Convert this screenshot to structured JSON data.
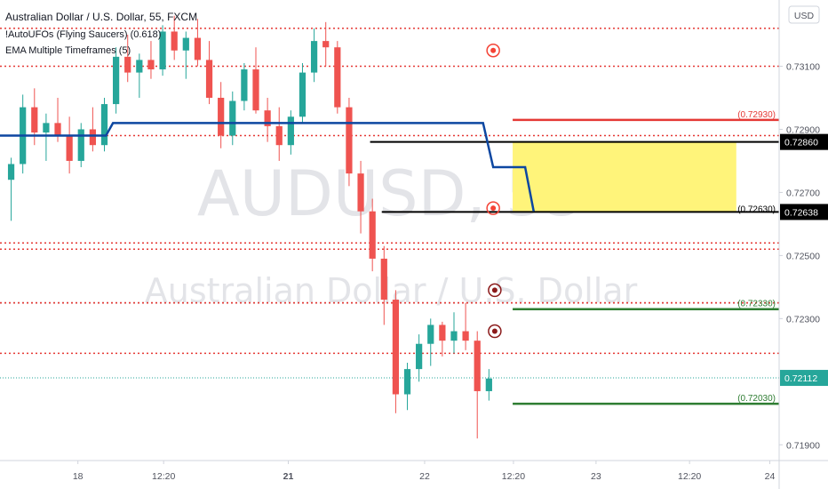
{
  "header": {
    "title": "Australian Dollar / U.S. Dollar, 55, FXCM",
    "indicators": [
      "!AutoUFOs (Flying Saucers) (0.618)",
      "EMA Multiple Timeframes (5)"
    ]
  },
  "currency_button": "USD",
  "watermark": {
    "symbol": "AUDUSD, 55",
    "name": "Australian Dollar / U.S. Dollar"
  },
  "chart_data": {
    "type": "candlestick",
    "title": "Australian Dollar / U.S. Dollar, 55, FXCM",
    "ylim": [
      0.7185,
      0.7331
    ],
    "y_ticks": [
      "0.73100",
      "0.72900",
      "0.72700",
      "0.72500",
      "0.72300",
      "0.71900"
    ],
    "x_ticks": [
      "18",
      "12:20",
      "21",
      "22",
      "12:20",
      "23",
      "12:20",
      "24"
    ],
    "current_price": "0.72112",
    "candles": [
      [
        0.7274,
        0.7281,
        0.7261,
        0.7279
      ],
      [
        0.7279,
        0.7301,
        0.7276,
        0.7297
      ],
      [
        0.7297,
        0.7303,
        0.7285,
        0.7289
      ],
      [
        0.7289,
        0.7295,
        0.728,
        0.7292
      ],
      [
        0.7292,
        0.73,
        0.7286,
        0.7288
      ],
      [
        0.7288,
        0.7294,
        0.7276,
        0.728
      ],
      [
        0.728,
        0.7292,
        0.7278,
        0.729
      ],
      [
        0.729,
        0.7297,
        0.7283,
        0.7285
      ],
      [
        0.7285,
        0.73,
        0.7283,
        0.7298
      ],
      [
        0.7298,
        0.7316,
        0.7295,
        0.7313
      ],
      [
        0.7313,
        0.732,
        0.7305,
        0.7308
      ],
      [
        0.7308,
        0.7314,
        0.73,
        0.7312
      ],
      [
        0.7312,
        0.7318,
        0.7306,
        0.7309
      ],
      [
        0.7309,
        0.7323,
        0.7307,
        0.7321
      ],
      [
        0.7321,
        0.7326,
        0.7312,
        0.7315
      ],
      [
        0.7315,
        0.7321,
        0.7306,
        0.7319
      ],
      [
        0.7319,
        0.7325,
        0.731,
        0.7312
      ],
      [
        0.7312,
        0.7318,
        0.7298,
        0.73
      ],
      [
        0.73,
        0.7305,
        0.7284,
        0.7288
      ],
      [
        0.7288,
        0.7302,
        0.7285,
        0.7299
      ],
      [
        0.7299,
        0.7311,
        0.7296,
        0.7309
      ],
      [
        0.7309,
        0.7316,
        0.7295,
        0.7296
      ],
      [
        0.7296,
        0.73,
        0.7286,
        0.7291
      ],
      [
        0.7291,
        0.7297,
        0.728,
        0.7285
      ],
      [
        0.7285,
        0.7296,
        0.7282,
        0.7294
      ],
      [
        0.7294,
        0.7311,
        0.7292,
        0.7308
      ],
      [
        0.7308,
        0.7322,
        0.7305,
        0.7318
      ],
      [
        0.7318,
        0.7324,
        0.731,
        0.7316
      ],
      [
        0.7316,
        0.7318,
        0.7295,
        0.7297
      ],
      [
        0.7297,
        0.73,
        0.7272,
        0.7276
      ],
      [
        0.7276,
        0.728,
        0.7257,
        0.7264
      ],
      [
        0.7264,
        0.7268,
        0.7245,
        0.7249
      ],
      [
        0.7249,
        0.7253,
        0.7228,
        0.7236
      ],
      [
        0.7236,
        0.7239,
        0.72,
        0.7206
      ],
      [
        0.7206,
        0.7216,
        0.7201,
        0.7214
      ],
      [
        0.7214,
        0.7225,
        0.721,
        0.7222
      ],
      [
        0.7222,
        0.723,
        0.7215,
        0.7228
      ],
      [
        0.7228,
        0.7229,
        0.7218,
        0.7223
      ],
      [
        0.7223,
        0.7232,
        0.7219,
        0.7226
      ],
      [
        0.7226,
        0.7235,
        0.722,
        0.7223
      ],
      [
        0.7223,
        0.7226,
        0.7192,
        0.7207
      ],
      [
        0.7207,
        0.7214,
        0.7204,
        0.7211
      ]
    ],
    "ema_line": [
      [
        0.0,
        0.7288
      ],
      [
        0.136,
        0.7288
      ],
      [
        0.145,
        0.7292
      ],
      [
        0.62,
        0.7292
      ],
      [
        0.633,
        0.7278
      ],
      [
        0.674,
        0.7278
      ],
      [
        0.685,
        0.7264
      ]
    ],
    "red_dotted_levels": [
      0.7322,
      0.731,
      0.7288,
      0.7254,
      0.7252,
      0.7235,
      0.7235,
      0.7219
    ],
    "teal_dotted_level": 0.72112,
    "zone": {
      "top": 0.7286,
      "bottom": 0.72638,
      "top_label": "0.72860",
      "bottom_label": "0.72638",
      "highlight_color": "#fff47a"
    },
    "level_labels": [
      {
        "text": "(0.72930)",
        "value": 0.7293,
        "color": "#e53935"
      },
      {
        "text": "(0.72630)",
        "value": 0.7263,
        "color": "#000000"
      },
      {
        "text": "(0.72330)",
        "value": 0.7233,
        "color": "#2e7d32"
      },
      {
        "text": "(0.72030)",
        "value": 0.7203,
        "color": "#2e7d32"
      }
    ],
    "markers": [
      {
        "value": 0.7315,
        "color": "#f44336"
      },
      {
        "value": 0.7265,
        "color": "#f44336"
      },
      {
        "value": 0.7239,
        "color": "#8b1a1a"
      },
      {
        "value": 0.7226,
        "color": "#8b1a1a"
      }
    ],
    "colors": {
      "up": "#26a69a",
      "down": "#ef5350",
      "ema": "#0d47a1"
    }
  }
}
